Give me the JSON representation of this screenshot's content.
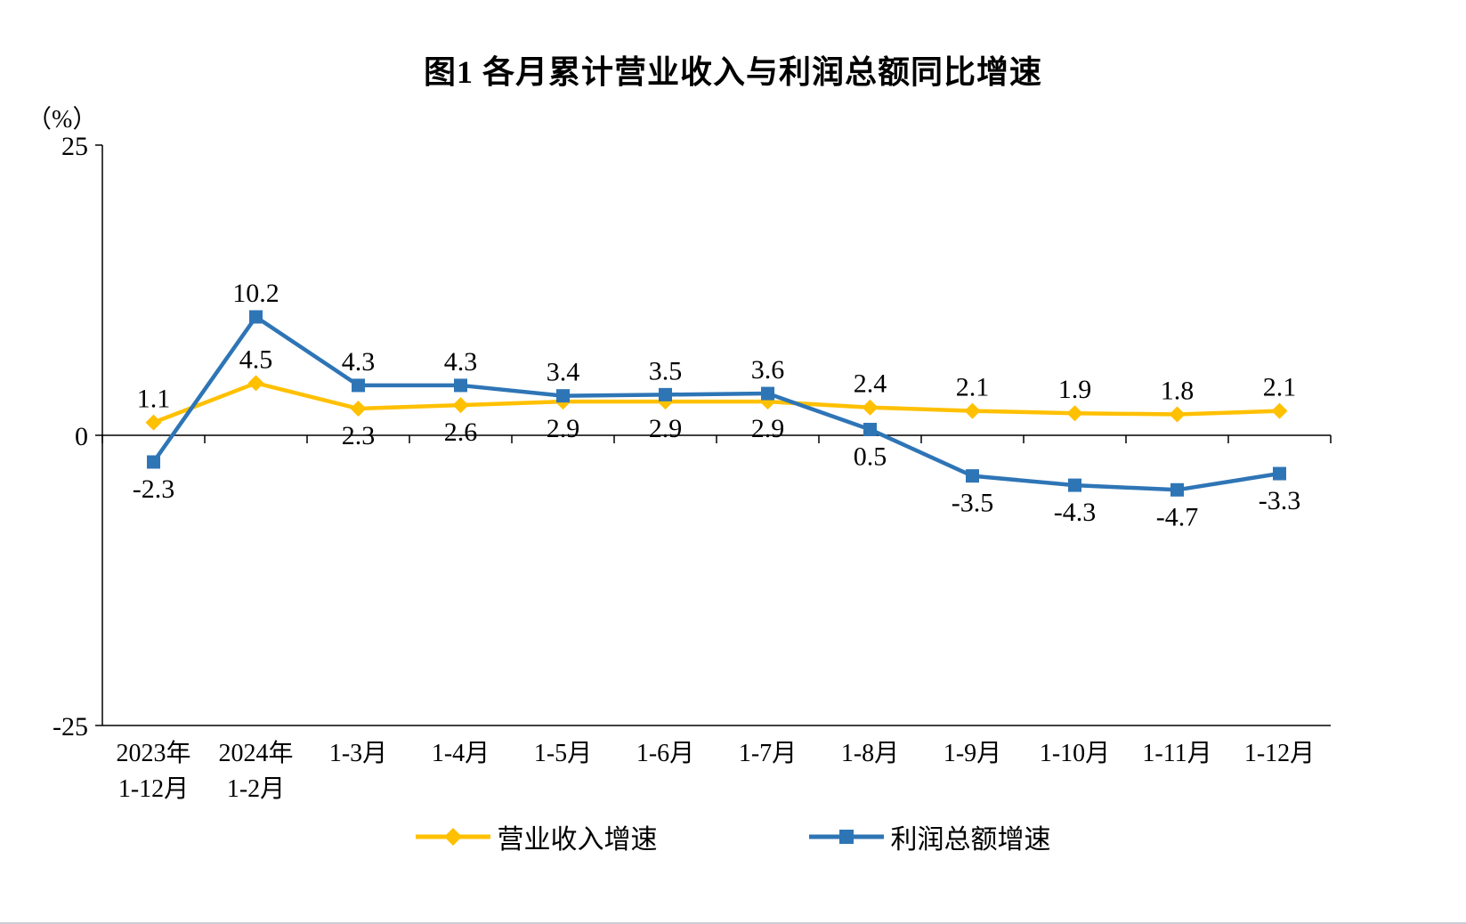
{
  "page": {
    "title": "图1  各月累计营业收入与利润总额同比增速",
    "y_axis_unit": "（%）"
  },
  "chart_data": {
    "type": "line",
    "title": "图1  各月累计营业收入与利润总额同比增速",
    "ylabel": "（%）",
    "ylim": [
      -25,
      25
    ],
    "y_ticks": [
      25,
      0,
      -25
    ],
    "grid": false,
    "legend_position": "bottom",
    "categories": [
      [
        "2023年",
        "1-12月"
      ],
      [
        "2024年",
        "1-2月"
      ],
      [
        "1-3月"
      ],
      [
        "1-4月"
      ],
      [
        "1-5月"
      ],
      [
        "1-6月"
      ],
      [
        "1-7月"
      ],
      [
        "1-8月"
      ],
      [
        "1-9月"
      ],
      [
        "1-10月"
      ],
      [
        "1-11月"
      ],
      [
        "1-12月"
      ]
    ],
    "series": [
      {
        "name": "营业收入增速",
        "color": "#FFC000",
        "marker": "diamond",
        "values": [
          1.1,
          4.5,
          2.3,
          2.6,
          2.9,
          2.9,
          2.9,
          2.4,
          2.1,
          1.9,
          1.8,
          2.1
        ],
        "label_positions": [
          "above",
          "above",
          "below",
          "below",
          "below",
          "below",
          "below",
          "above",
          "above",
          "above",
          "above",
          "above"
        ]
      },
      {
        "name": "利润总额增速",
        "color": "#2E75B6",
        "marker": "square",
        "values": [
          -2.3,
          10.2,
          4.3,
          4.3,
          3.4,
          3.5,
          3.6,
          0.5,
          -3.5,
          -4.3,
          -4.7,
          -3.3
        ],
        "label_positions": [
          "below",
          "above",
          "above",
          "above",
          "above",
          "above",
          "above",
          "below",
          "below",
          "below",
          "below",
          "below"
        ]
      }
    ]
  }
}
